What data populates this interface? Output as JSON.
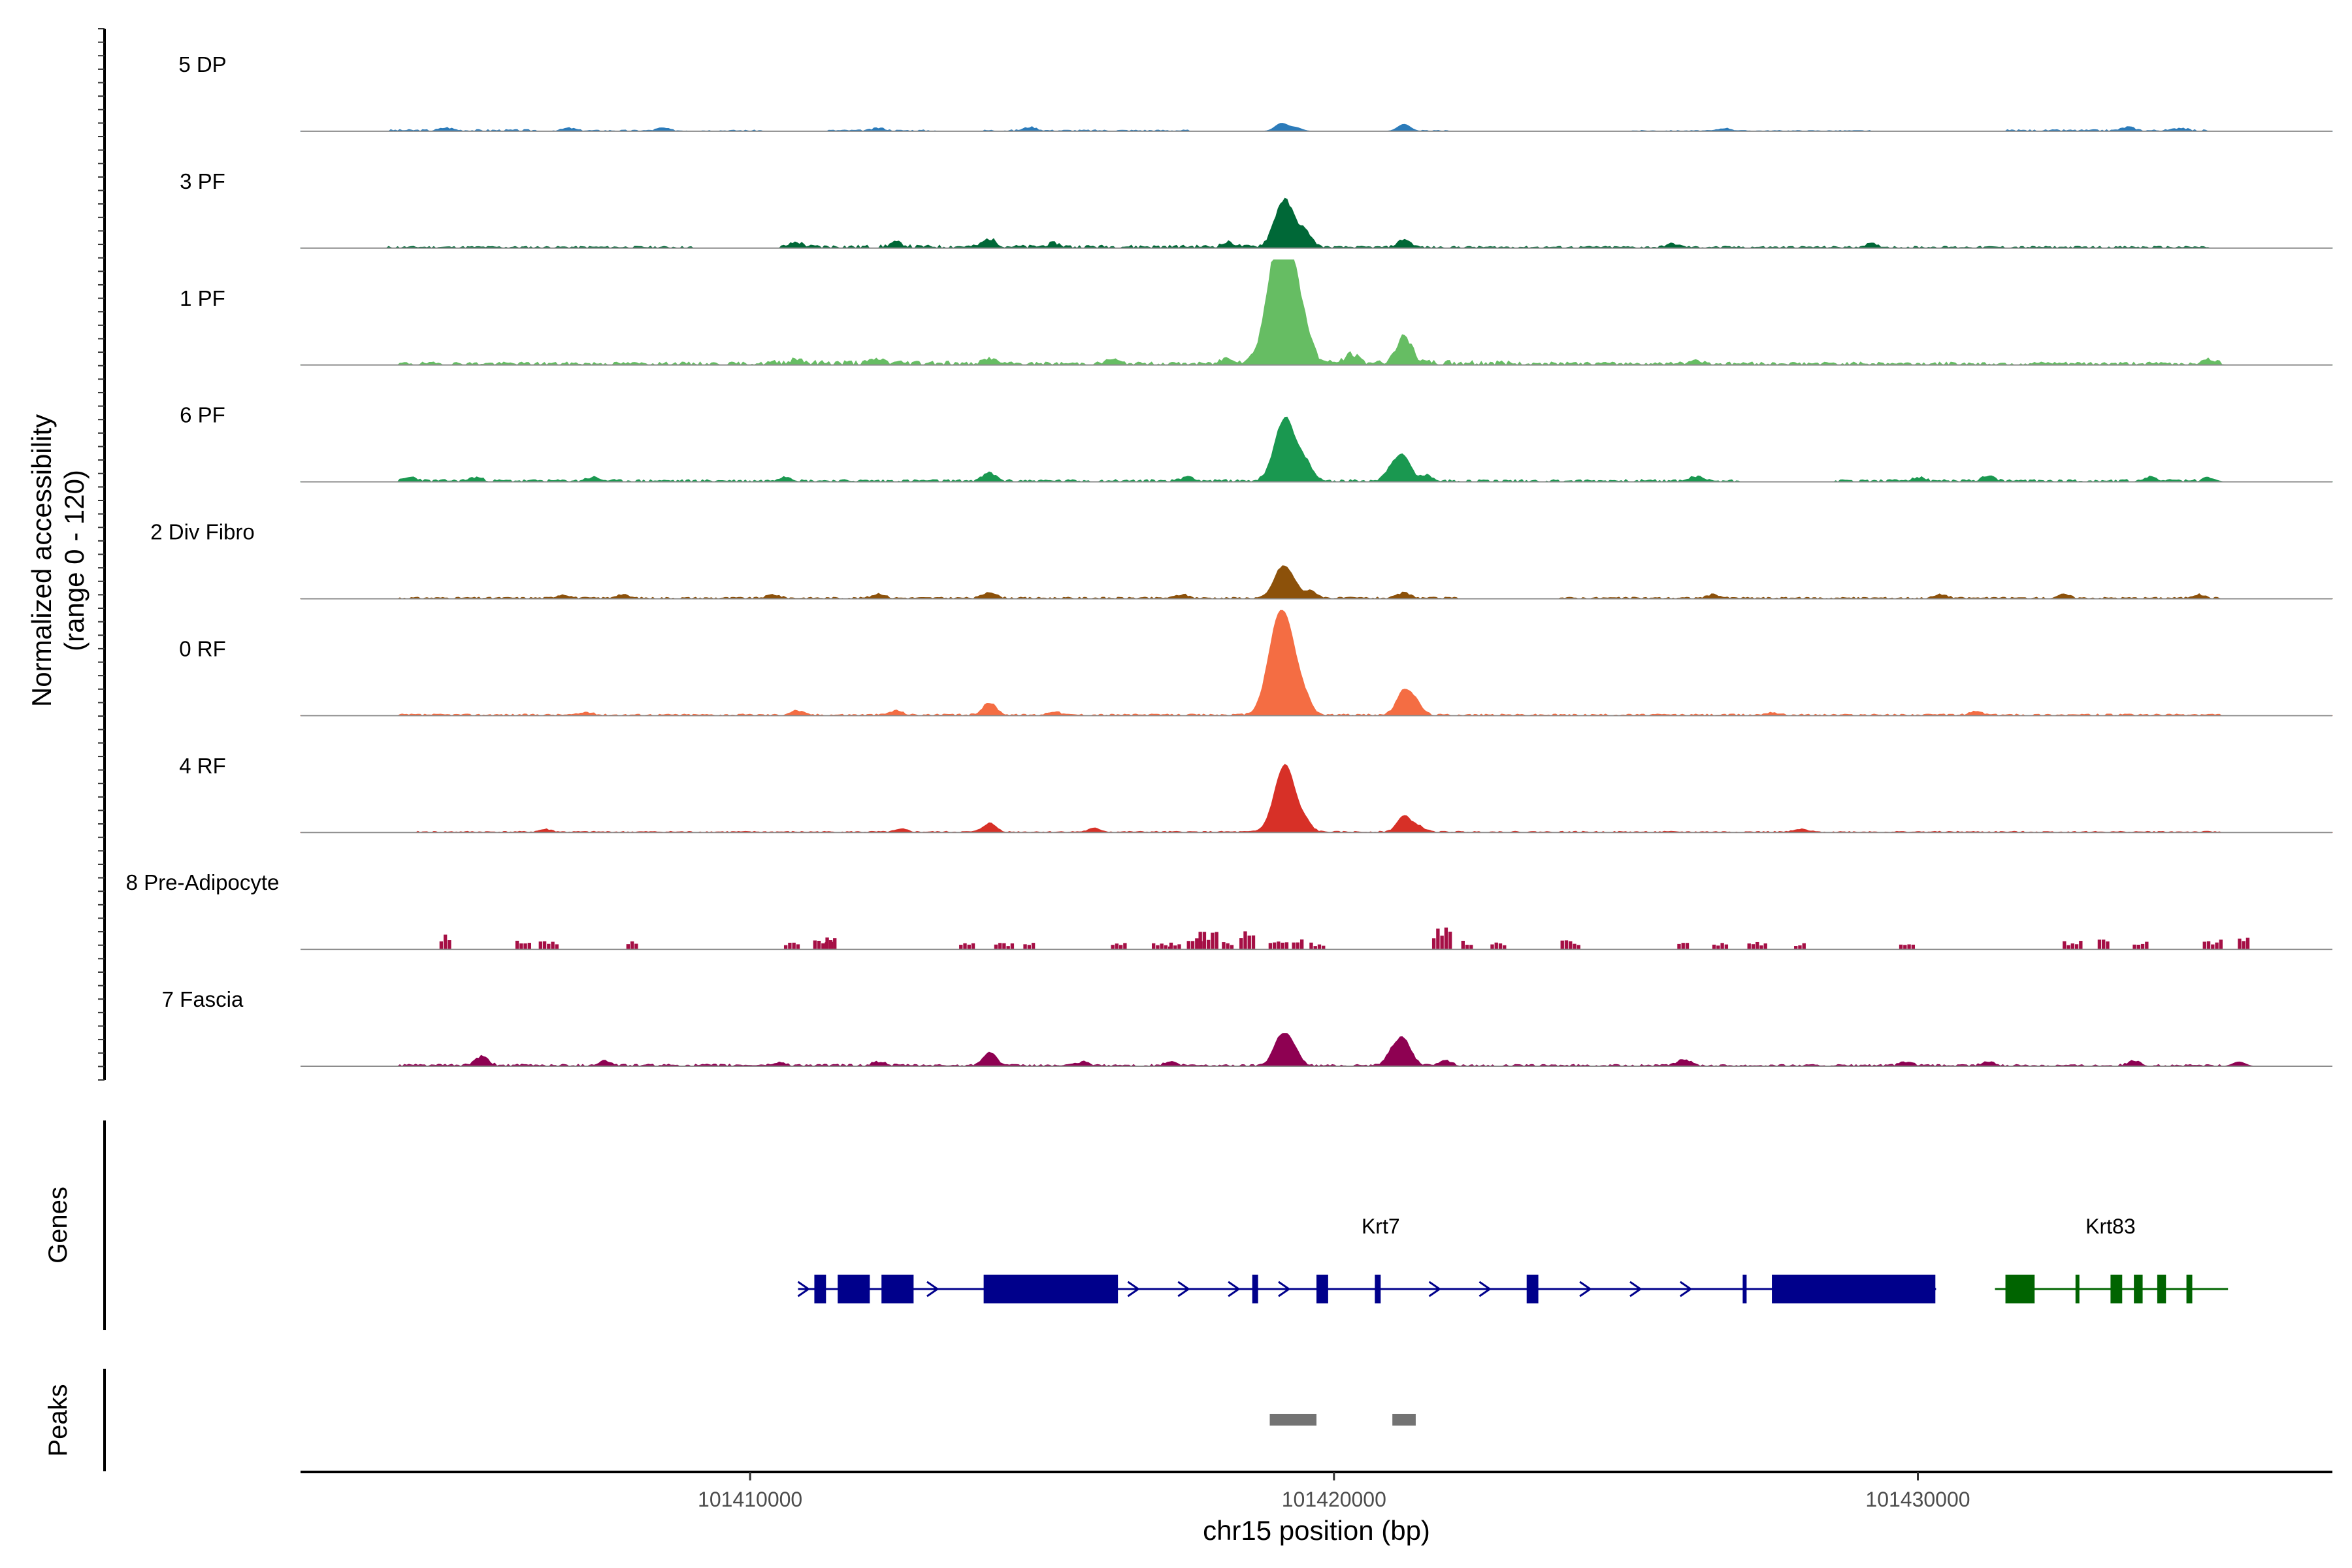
{
  "chart_data": {
    "type": "area",
    "title": "",
    "chromosome": "chr15",
    "xlabel": "chr15 position (bp)",
    "ylabel": "Normalized accessibility",
    "ylabel_range": "(range 0 - 120)",
    "ylim": [
      0,
      120
    ],
    "xlim": [
      101402300,
      101437100
    ],
    "x_ticks": [
      101410000,
      101420000,
      101430000
    ],
    "x_tick_labels": [
      "101410000",
      "101420000",
      "101430000"
    ],
    "grid": false,
    "tracks_section": "Normalized accessibility",
    "genes_section": "Genes",
    "peaks_section": "Peaks",
    "series": [
      {
        "name": "5 DP",
        "color": "#2b7bba",
        "style": "smooth",
        "seed": 3,
        "baseline": 1.5,
        "coverage": [
          [
            101403800,
            101406400,
            1
          ],
          [
            101406600,
            101410200,
            0.7
          ],
          [
            101411300,
            101413200,
            0.8
          ],
          [
            101414000,
            101417500,
            0.8
          ],
          [
            101421500,
            101422000,
            0.5
          ],
          [
            101425000,
            101429200,
            0.5
          ],
          [
            101431500,
            101435000,
            0.9
          ]
        ],
        "peaks": [
          [
            101404800,
            3
          ],
          [
            101406900,
            3
          ],
          [
            101408500,
            3
          ],
          [
            101412200,
            3
          ],
          [
            101414800,
            4
          ],
          [
            101419100,
            9
          ],
          [
            101419350,
            4
          ],
          [
            101421200,
            8
          ],
          [
            101426700,
            3
          ],
          [
            101433600,
            4
          ],
          [
            101434500,
            3
          ]
        ]
      },
      {
        "name": "3 PF",
        "color": "#006837",
        "style": "smooth",
        "seed": 11,
        "baseline": 2,
        "coverage": [
          [
            101403800,
            101409000,
            0.8
          ],
          [
            101410500,
            101419500,
            1.3
          ],
          [
            101419500,
            101435000,
            0.8
          ]
        ],
        "peaks": [
          [
            101410800,
            5
          ],
          [
            101412500,
            5
          ],
          [
            101414100,
            9
          ],
          [
            101415200,
            4
          ],
          [
            101418200,
            5
          ],
          [
            101419100,
            42
          ],
          [
            101419250,
            20
          ],
          [
            101419500,
            18
          ],
          [
            101421200,
            9
          ],
          [
            101425800,
            4
          ],
          [
            101429200,
            4
          ]
        ]
      },
      {
        "name": "1 PF",
        "color": "#66bd63",
        "style": "smooth",
        "seed": 19,
        "baseline": 2.5,
        "coverage": [
          [
            101404000,
            101435200,
            1.0
          ],
          [
            101410300,
            101413500,
            1.6
          ],
          [
            101418000,
            101423000,
            1.6
          ]
        ],
        "peaks": [
          [
            101410800,
            5
          ],
          [
            101412200,
            4
          ],
          [
            101414100,
            6
          ],
          [
            101416200,
            5
          ],
          [
            101418200,
            6
          ],
          [
            101419000,
            85
          ],
          [
            101419150,
            72
          ],
          [
            101419300,
            40
          ],
          [
            101419500,
            32
          ],
          [
            101420300,
            10
          ],
          [
            101421200,
            30
          ],
          [
            101426200,
            4
          ],
          [
            101435000,
            5
          ]
        ]
      },
      {
        "name": "6 PF",
        "color": "#1a9850",
        "style": "smooth",
        "seed": 23,
        "baseline": 2,
        "coverage": [
          [
            101404000,
            101427000,
            1.0
          ],
          [
            101428500,
            101435000,
            1.0
          ]
        ],
        "peaks": [
          [
            101404200,
            4
          ],
          [
            101405300,
            4
          ],
          [
            101407300,
            4
          ],
          [
            101410600,
            5
          ],
          [
            101414100,
            9
          ],
          [
            101417500,
            5
          ],
          [
            101419100,
            52
          ],
          [
            101419250,
            30
          ],
          [
            101419500,
            22
          ],
          [
            101421000,
            15
          ],
          [
            101421200,
            25
          ],
          [
            101421600,
            6
          ],
          [
            101426200,
            5
          ],
          [
            101430000,
            4
          ],
          [
            101431200,
            5
          ],
          [
            101434000,
            4
          ],
          [
            101435000,
            4
          ]
        ]
      },
      {
        "name": "2 Div Fibro",
        "color": "#8c510a",
        "style": "smooth",
        "seed": 31,
        "baseline": 1.5,
        "coverage": [
          [
            101404000,
            101422200,
            0.9
          ],
          [
            101423800,
            101435200,
            0.9
          ]
        ],
        "peaks": [
          [
            101406800,
            4
          ],
          [
            101407800,
            4
          ],
          [
            101410400,
            4
          ],
          [
            101412200,
            5
          ],
          [
            101414100,
            7
          ],
          [
            101417400,
            4
          ],
          [
            101419100,
            33
          ],
          [
            101419300,
            14
          ],
          [
            101419600,
            8
          ],
          [
            101421200,
            6
          ],
          [
            101426500,
            4
          ],
          [
            101430400,
            4
          ],
          [
            101432500,
            4
          ],
          [
            101434800,
            4
          ]
        ]
      },
      {
        "name": "0 RF",
        "color": "#f46d43",
        "style": "smooth",
        "seed": 37,
        "baseline": 1.5,
        "coverage": [
          [
            101404000,
            101435200,
            0.9
          ]
        ],
        "peaks": [
          [
            101407200,
            3
          ],
          [
            101410800,
            5
          ],
          [
            101412500,
            5
          ],
          [
            101414100,
            14
          ],
          [
            101415200,
            4
          ],
          [
            101419000,
            70
          ],
          [
            101419150,
            55
          ],
          [
            101419300,
            30
          ],
          [
            101419500,
            18
          ],
          [
            101421200,
            27
          ],
          [
            101421400,
            12
          ],
          [
            101427500,
            3
          ],
          [
            101431000,
            4
          ]
        ]
      },
      {
        "name": "4 RF",
        "color": "#d73027",
        "style": "smooth",
        "seed": 41,
        "baseline": 1.3,
        "coverage": [
          [
            101404300,
            101435200,
            0.8
          ]
        ],
        "peaks": [
          [
            101406500,
            3
          ],
          [
            101412600,
            3
          ],
          [
            101414100,
            10
          ],
          [
            101415900,
            4
          ],
          [
            101419100,
            55
          ],
          [
            101419250,
            32
          ],
          [
            101419500,
            12
          ],
          [
            101421200,
            18
          ],
          [
            101421450,
            6
          ],
          [
            101428000,
            3
          ]
        ]
      },
      {
        "name": "8 Pre-Adipocyte",
        "color": "#a50f45",
        "style": "blocky",
        "seed": 53,
        "baseline": 0,
        "coverage": [],
        "peaks": [
          [
            101404800,
            20
          ],
          [
            101406100,
            10
          ],
          [
            101406500,
            12
          ],
          [
            101408000,
            11
          ],
          [
            101410700,
            10
          ],
          [
            101411200,
            14
          ],
          [
            101411400,
            17
          ],
          [
            101413700,
            7
          ],
          [
            101414300,
            8
          ],
          [
            101414800,
            9
          ],
          [
            101416300,
            10
          ],
          [
            101417000,
            7
          ],
          [
            101417300,
            9
          ],
          [
            101417600,
            14
          ],
          [
            101417800,
            22
          ],
          [
            101418200,
            9
          ],
          [
            101418500,
            24
          ],
          [
            101419000,
            9
          ],
          [
            101419400,
            12
          ],
          [
            101419700,
            8
          ],
          [
            101421800,
            25
          ],
          [
            101422300,
            10
          ],
          [
            101422800,
            8
          ],
          [
            101424000,
            11
          ],
          [
            101426000,
            10
          ],
          [
            101426600,
            8
          ],
          [
            101427200,
            9
          ],
          [
            101428000,
            8
          ],
          [
            101429800,
            8
          ],
          [
            101432600,
            10
          ],
          [
            101433200,
            12
          ],
          [
            101433800,
            10
          ],
          [
            101435000,
            12
          ],
          [
            101435600,
            18
          ]
        ]
      },
      {
        "name": "7 Fascia",
        "color": "#8e0152",
        "style": "smooth",
        "seed": 61,
        "baseline": 1.5,
        "coverage": [
          [
            101404000,
            101412800,
            1.2
          ],
          [
            101412800,
            101435200,
            1.0
          ]
        ],
        "peaks": [
          [
            101405400,
            10
          ],
          [
            101407500,
            5
          ],
          [
            101410500,
            3
          ],
          [
            101412200,
            4
          ],
          [
            101414100,
            15
          ],
          [
            101415700,
            4
          ],
          [
            101417200,
            4
          ],
          [
            101419100,
            33
          ],
          [
            101419300,
            16
          ],
          [
            101421000,
            14
          ],
          [
            101421200,
            28
          ],
          [
            101421900,
            6
          ],
          [
            101426000,
            7
          ],
          [
            101429800,
            4
          ],
          [
            101431200,
            4
          ],
          [
            101433700,
            5
          ],
          [
            101435500,
            5
          ]
        ]
      }
    ],
    "genes": [
      {
        "name": "Krt7",
        "color": "#00008b",
        "strand": "+",
        "start": 101411000,
        "end": 101430200,
        "label_pos": 101420800,
        "exons": [
          [
            101411100,
            101411300
          ],
          [
            101411500,
            101412050
          ],
          [
            101412250,
            101412800
          ],
          [
            101414000,
            101416300
          ],
          [
            101418600,
            101418700
          ],
          [
            101419700,
            101419900
          ],
          [
            101420700,
            101420800
          ],
          [
            101423300,
            101423500
          ],
          [
            101427000,
            101427050
          ],
          [
            101427500,
            101430300
          ]
        ]
      },
      {
        "name": "Krt83",
        "color": "#006400",
        "strand": "-",
        "start": 101431500,
        "end": 101435200,
        "label_pos": 101433300,
        "exons": [
          [
            101431500,
            101432000
          ],
          [
            101432700,
            101432750
          ],
          [
            101433300,
            101433500
          ],
          [
            101433700,
            101433850
          ],
          [
            101434100,
            101434250
          ],
          [
            101434600,
            101434700
          ]
        ]
      }
    ],
    "peak_regions": [
      [
        101418900,
        101419700
      ],
      [
        101421000,
        101421400
      ]
    ],
    "peak_color": "#737373"
  }
}
